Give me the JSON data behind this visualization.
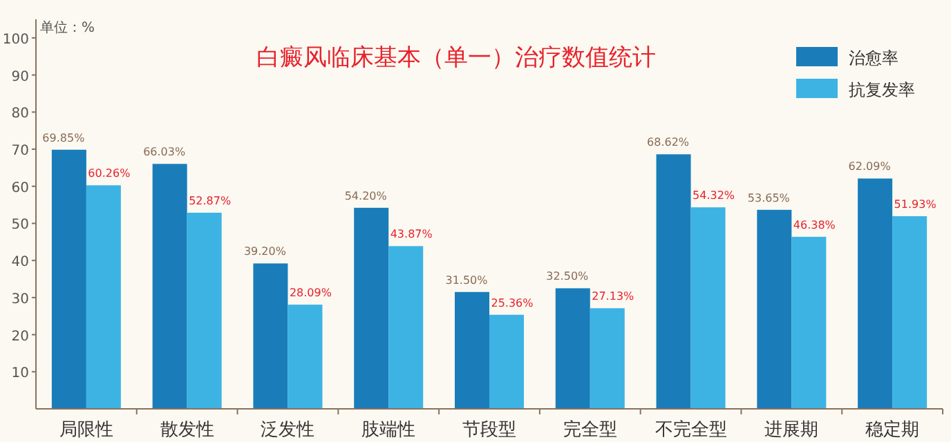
{
  "chart_data": {
    "type": "bar",
    "title": "白癜风临床基本（单一）治疗数值统计",
    "ylabel": "单位：%",
    "categories": [
      "局限性",
      "散发性",
      "泛发性",
      "肢端性",
      "节段型",
      "完全型",
      "不完全型",
      "进展期",
      "稳定期"
    ],
    "series": [
      {
        "name": "治愈率",
        "color": "#1a7dba",
        "values": [
          69.85,
          66.03,
          39.2,
          54.2,
          31.5,
          32.5,
          68.62,
          53.65,
          62.09
        ],
        "value_labels": [
          "69.85%",
          "66.03%",
          "39.20%",
          "54.20%",
          "31.50%",
          "32.50%",
          "68.62%",
          "53.65%",
          "62.09%"
        ]
      },
      {
        "name": "抗复发率",
        "color": "#3db3e4",
        "values": [
          60.26,
          52.87,
          28.09,
          43.87,
          25.36,
          27.13,
          54.32,
          46.38,
          51.93
        ],
        "value_labels": [
          "60.26%",
          "52.87%",
          "28.09%",
          "43.87%",
          "25.36%",
          "27.13%",
          "54.32%",
          "46.38%",
          "51.93%"
        ]
      }
    ],
    "ylim": [
      0,
      105
    ],
    "yticks": [
      10,
      20,
      30,
      40,
      50,
      60,
      70,
      80,
      90,
      100
    ],
    "grid": false,
    "legend": "top right"
  }
}
